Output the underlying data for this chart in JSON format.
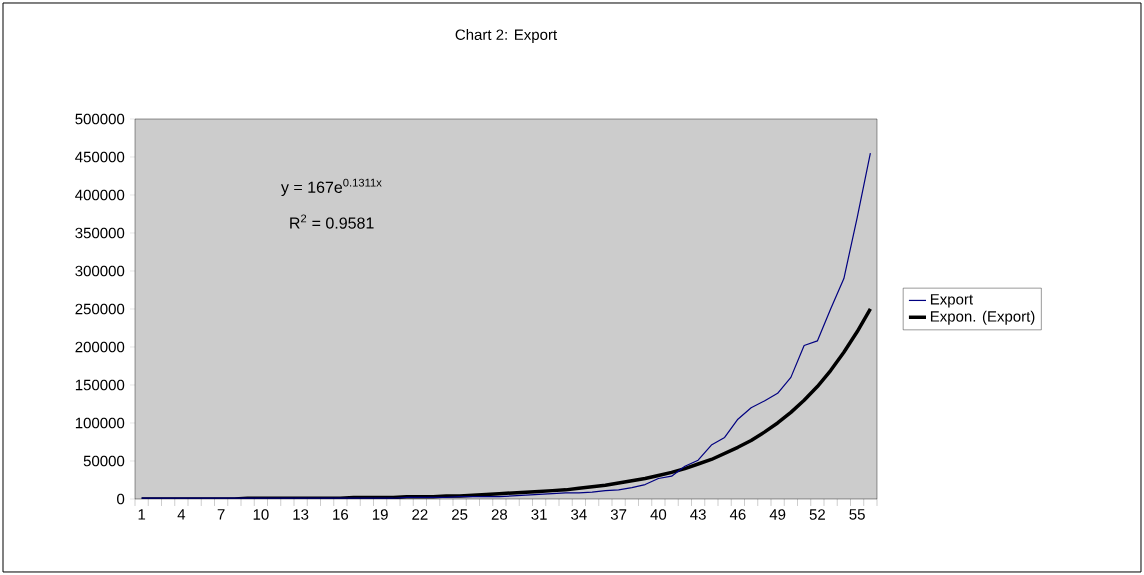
{
  "chart_data": {
    "type": "line",
    "title": "Chart 2:  Export",
    "categories": [
      "1",
      null,
      null,
      "4",
      null,
      null,
      "7",
      null,
      null,
      "10",
      null,
      null,
      "13",
      null,
      null,
      "16",
      null,
      null,
      "19",
      null,
      null,
      "22",
      null,
      null,
      "25",
      null,
      null,
      "28",
      null,
      null,
      "31",
      null,
      null,
      "34",
      null,
      null,
      "37",
      null,
      null,
      "40",
      null,
      null,
      "43",
      null,
      null,
      "46",
      null,
      null,
      "49",
      null,
      null,
      "52",
      null,
      null,
      "55",
      null
    ],
    "series": [
      {
        "name": "Export",
        "color": "#000080",
        "values": [
          1000,
          1000,
          1000,
          1000,
          1000,
          1000,
          1000,
          1000,
          1000,
          1000,
          1000,
          1000,
          1000,
          1000,
          1000,
          1000,
          1000,
          1000,
          1000,
          1000,
          2000,
          2000,
          2000,
          2000,
          3000,
          3000,
          3000,
          3000,
          4000,
          5000,
          6000,
          7000,
          8000,
          8000,
          9000,
          11000,
          12000,
          15000,
          19000,
          27000,
          30000,
          43000,
          51000,
          71000,
          81000,
          105000,
          120000,
          129000,
          139000,
          160000,
          202000,
          208000,
          250000,
          290000,
          370000,
          455000
        ]
      },
      {
        "name": "Expon. (Export)",
        "color": "#000000",
        "values": [
          0,
          0,
          0,
          0,
          0,
          0,
          0,
          0,
          1000,
          1000,
          1000,
          1000,
          1000,
          1000,
          1000,
          1000,
          2000,
          2000,
          2000,
          2000,
          3000,
          3000,
          3000,
          4000,
          4000,
          5000,
          6000,
          7000,
          8000,
          9000,
          10000,
          11000,
          12000,
          14000,
          16000,
          18000,
          21000,
          24000,
          27000,
          31000,
          35000,
          40000,
          46000,
          52000,
          60000,
          68000,
          77000,
          88000,
          100000,
          114000,
          130000,
          148000,
          169000,
          193000,
          220000,
          250000
        ]
      }
    ],
    "ylim": [
      0,
      500000
    ],
    "yticks": [
      0,
      50000,
      100000,
      150000,
      200000,
      250000,
      300000,
      350000,
      400000,
      450000,
      500000
    ],
    "legend": "right",
    "marker": "none",
    "grid": false,
    "annotations": [
      "y = 167e$^{0.1311x}$",
      "R$^{2}$ = 0.9581"
    ]
  }
}
